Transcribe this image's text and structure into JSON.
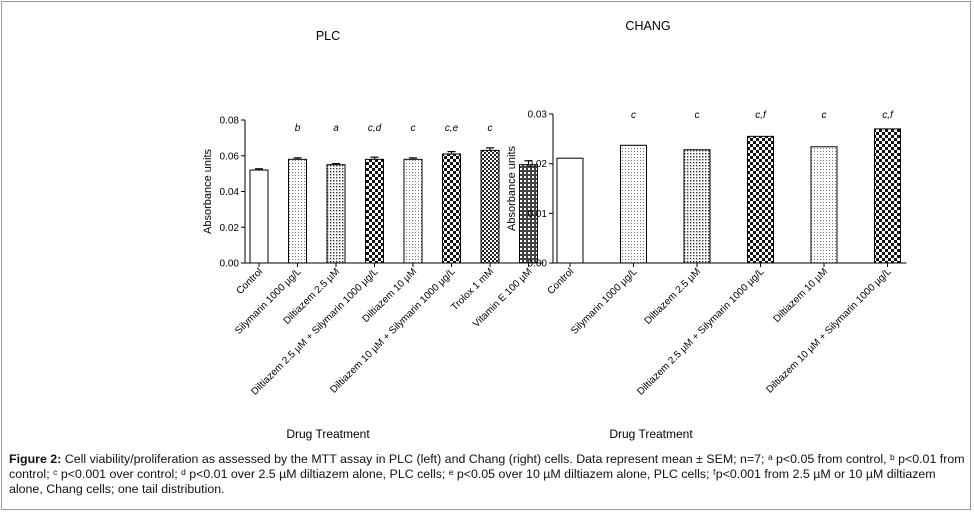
{
  "chart_data": [
    {
      "type": "bar",
      "title": "PLC",
      "xlabel": "Drug Treatment",
      "ylabel": "Absorbance units",
      "ylim": [
        0,
        0.08
      ],
      "yticks": [
        "0.00",
        "0.02",
        "0.04",
        "0.06",
        "0.08"
      ],
      "categories": [
        "Control",
        "Silymarin 1000 µg/L",
        "Diltiazem 2.5 µM",
        "Diltiazem 2.5 µM + Silymarin 1000 µg/L",
        "Diltiazem 10 µM",
        "Diltiazem 10 µM + Silymarin 1000 µg/L",
        "Trolox 1 mM",
        "Vitamin E 100 µM"
      ],
      "values": [
        0.052,
        0.058,
        0.055,
        0.058,
        0.058,
        0.061,
        0.063,
        0.055
      ],
      "errors": [
        0.0007,
        0.0008,
        0.0006,
        0.0012,
        0.0008,
        0.0013,
        0.0014,
        0.0022
      ],
      "annotations": [
        "",
        "b",
        "a",
        "c,d",
        "c",
        "c,e",
        "c",
        ""
      ],
      "patterns": [
        "none",
        "dots-fine",
        "dots",
        "checker",
        "dots-fine",
        "checker",
        "checker-small",
        "checker-dense"
      ]
    },
    {
      "type": "bar",
      "title": "CHANG",
      "xlabel": "Drug Treatment",
      "ylabel": "Absorbance units",
      "ylim": [
        0,
        0.03
      ],
      "yticks": [
        "0.00",
        "0.01",
        "0.02",
        "0.03"
      ],
      "categories": [
        "Control",
        "Silymarin 1000 µg/L",
        "Diltiazem 2.5 µM",
        "Diltiazem 2.5 µM + Silymarin 1000 µg/L",
        "Diltiazem 10 µM",
        "Diltiazem 10 µM + Silymarin 1000 µg/L"
      ],
      "values": [
        0.0211,
        0.0237,
        0.0228,
        0.0255,
        0.0234,
        0.027
      ],
      "errors": [
        0,
        0,
        0,
        0,
        0,
        0
      ],
      "annotations": [
        "",
        "c",
        "c",
        "c,f",
        "c",
        "c,f"
      ],
      "patterns": [
        "none",
        "dots-fine",
        "dots",
        "checker",
        "dots-fine",
        "checker"
      ]
    }
  ],
  "caption": {
    "label": "Figure 2:",
    "text": "Cell viability/proliferation as assessed by the MTT assay in PLC (left) and Chang (right) cells. Data represent mean ± SEM; n=7; ᵃ p<0.05 from control, ᵇ p<0.01 from control; ᶜ p<0.001 over control; ᵈ p<0.01 over 2.5 µM diltiazem alone, PLC cells; ᵉ p<0.05 over 10 µM diltiazem alone, PLC cells; ᶠp<0.001 from 2.5 µM or 10 µM diltiazem alone, Chang cells; one tail distribution."
  }
}
